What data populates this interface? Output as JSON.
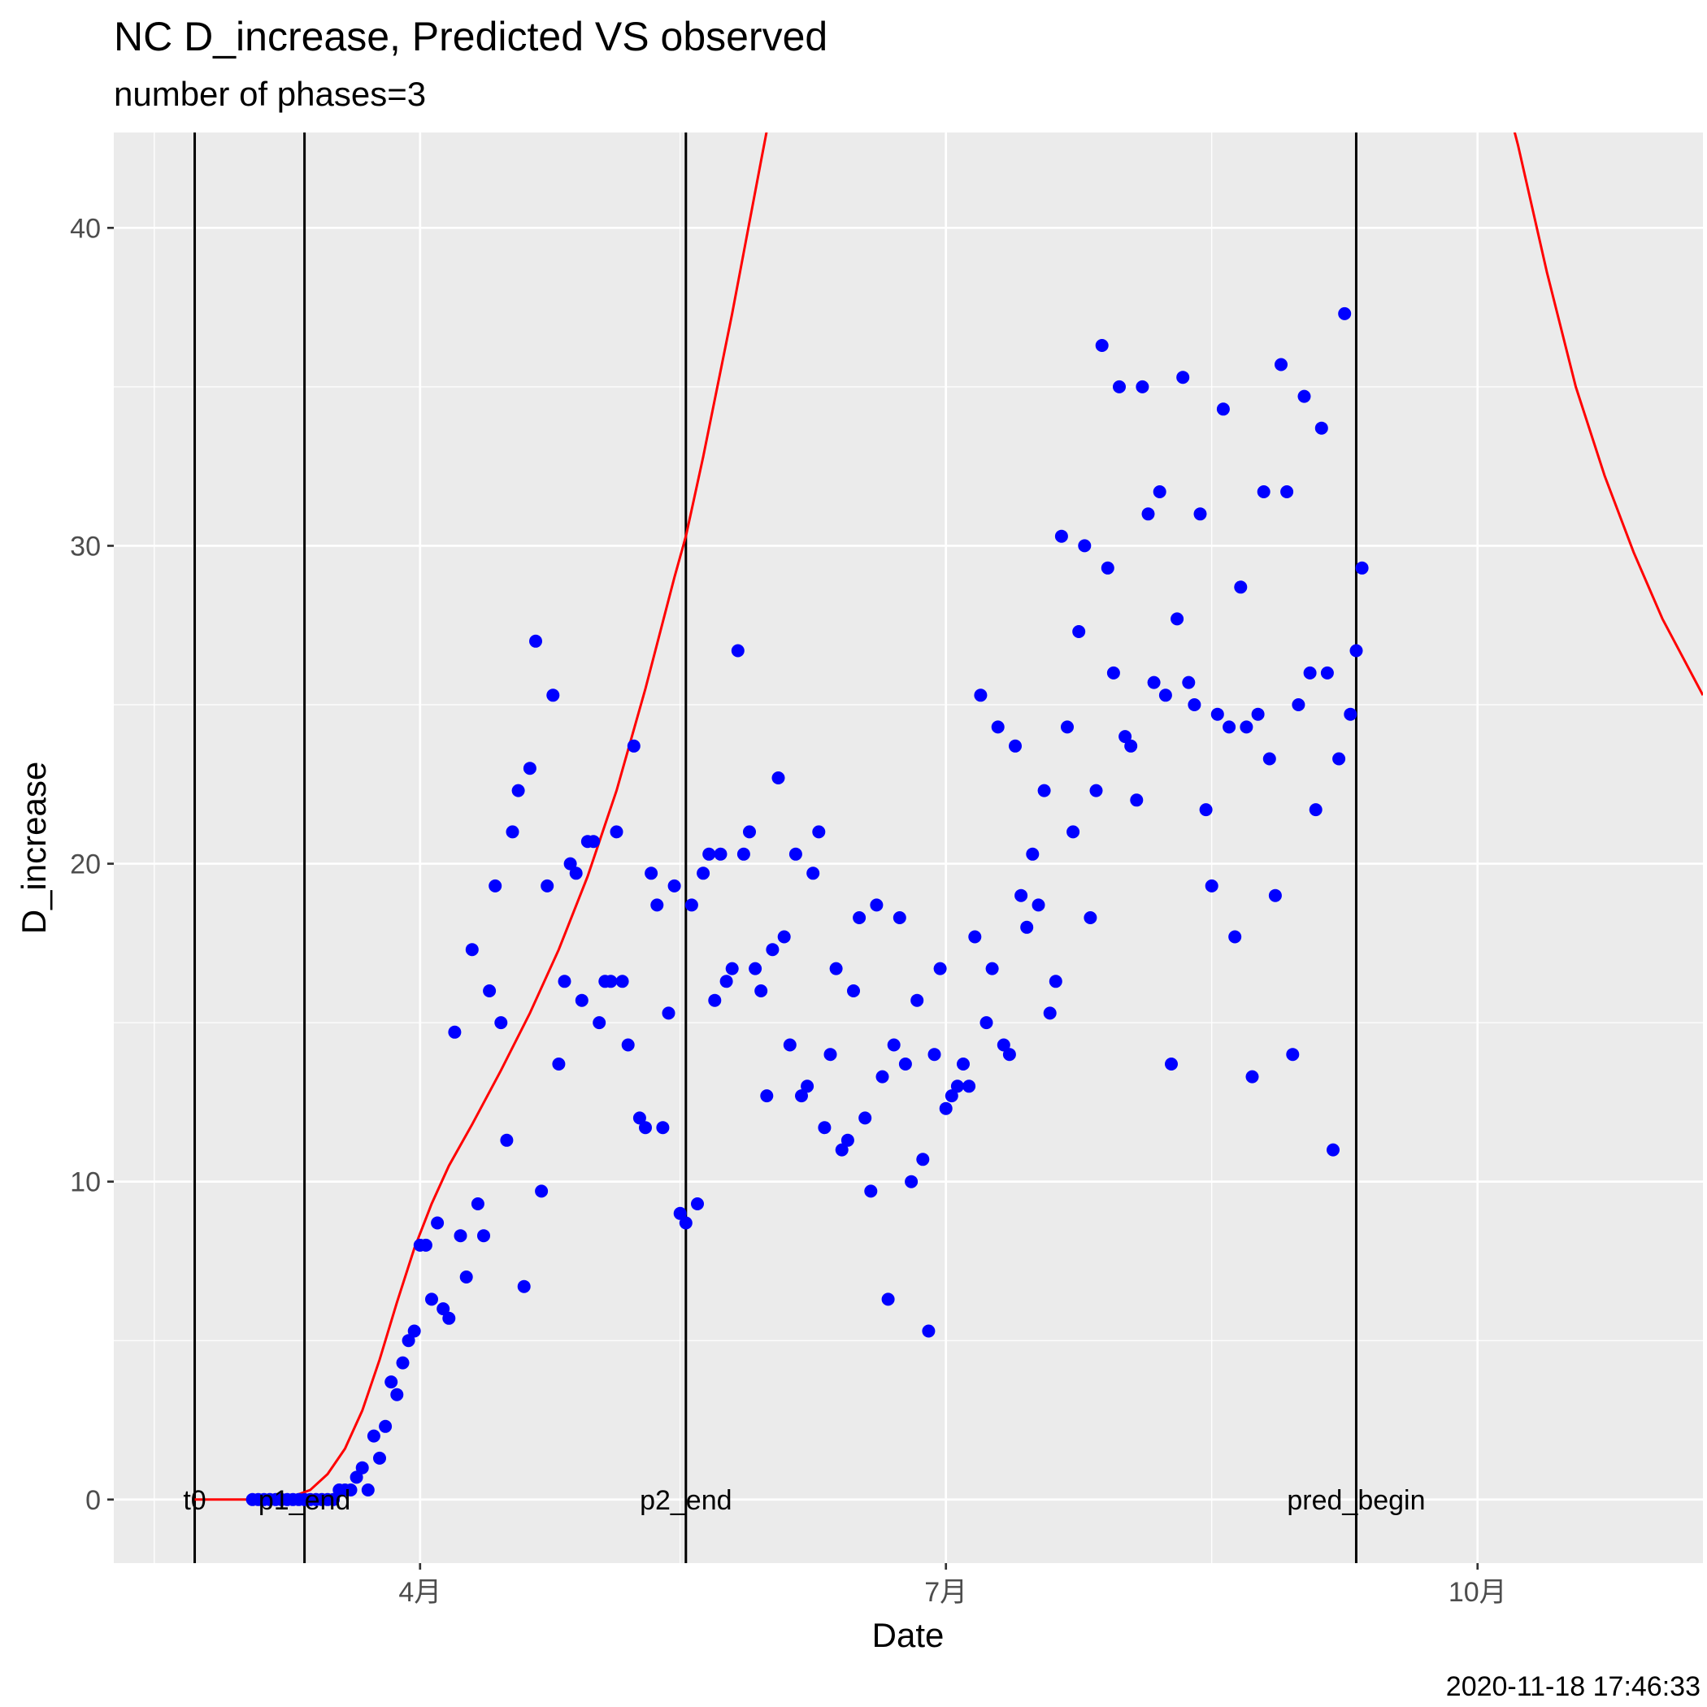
{
  "chart_data": {
    "type": "scatter",
    "title": "NC D_increase, Predicted VS observed",
    "subtitle": "number of phases=3",
    "xlabel": "Date",
    "ylabel": "D_increase",
    "caption": "2020-11-18 17:46:33",
    "xlim": [
      "2020-02-08",
      "2020-11-09"
    ],
    "ylim": [
      -2,
      43
    ],
    "y_ticks": [
      0,
      10,
      20,
      30,
      40
    ],
    "x_ticks": [
      {
        "date": "2020-04-01",
        "label": "4月"
      },
      {
        "date": "2020-07-01",
        "label": "7月"
      },
      {
        "date": "2020-10-01",
        "label": "10月"
      }
    ],
    "grid": true,
    "colors": {
      "panel": "#ebebeb",
      "grid": "#ffffff",
      "points": "#0000ff",
      "predicted": "#ff0000",
      "vlines": "#000000"
    },
    "vlines": [
      {
        "date": "2020-02-22",
        "label": "t0"
      },
      {
        "date": "2020-03-12",
        "label": "p1_end"
      },
      {
        "date": "2020-05-17",
        "label": "p2_end"
      },
      {
        "date": "2020-09-10",
        "label": "pred_begin"
      }
    ],
    "series": [
      {
        "type": "scatter",
        "color": "#0000ff",
        "points": [
          [
            "2020-03-03",
            0
          ],
          [
            "2020-03-04",
            0
          ],
          [
            "2020-03-05",
            0
          ],
          [
            "2020-03-06",
            0
          ],
          [
            "2020-03-07",
            0
          ],
          [
            "2020-03-08",
            0
          ],
          [
            "2020-03-09",
            0
          ],
          [
            "2020-03-10",
            0
          ],
          [
            "2020-03-11",
            0
          ],
          [
            "2020-03-12",
            0
          ],
          [
            "2020-03-13",
            0
          ],
          [
            "2020-03-14",
            0
          ],
          [
            "2020-03-15",
            0
          ],
          [
            "2020-03-16",
            0
          ],
          [
            "2020-03-17",
            0
          ],
          [
            "2020-03-18",
            0.3
          ],
          [
            "2020-03-19",
            0.3
          ],
          [
            "2020-03-20",
            0.3
          ],
          [
            "2020-03-21",
            0.7
          ],
          [
            "2020-03-22",
            1
          ],
          [
            "2020-03-23",
            0.3
          ],
          [
            "2020-03-24",
            2
          ],
          [
            "2020-03-25",
            1.3
          ],
          [
            "2020-03-26",
            2.3
          ],
          [
            "2020-03-27",
            3.7
          ],
          [
            "2020-03-28",
            3.3
          ],
          [
            "2020-03-29",
            4.3
          ],
          [
            "2020-03-30",
            5
          ],
          [
            "2020-03-31",
            5.3
          ],
          [
            "2020-04-01",
            8
          ],
          [
            "2020-04-02",
            8
          ],
          [
            "2020-04-03",
            6.3
          ],
          [
            "2020-04-04",
            8.7
          ],
          [
            "2020-04-05",
            6
          ],
          [
            "2020-04-06",
            5.7
          ],
          [
            "2020-04-07",
            14.7
          ],
          [
            "2020-04-08",
            8.3
          ],
          [
            "2020-04-09",
            7
          ],
          [
            "2020-04-10",
            17.3
          ],
          [
            "2020-04-11",
            9.3
          ],
          [
            "2020-04-12",
            8.3
          ],
          [
            "2020-04-13",
            16
          ],
          [
            "2020-04-14",
            19.3
          ],
          [
            "2020-04-15",
            15
          ],
          [
            "2020-04-16",
            11.3
          ],
          [
            "2020-04-17",
            21
          ],
          [
            "2020-04-18",
            22.3
          ],
          [
            "2020-04-19",
            6.7
          ],
          [
            "2020-04-20",
            23
          ],
          [
            "2020-04-21",
            27
          ],
          [
            "2020-04-22",
            9.7
          ],
          [
            "2020-04-23",
            19.3
          ],
          [
            "2020-04-24",
            25.3
          ],
          [
            "2020-04-25",
            13.7
          ],
          [
            "2020-04-26",
            16.3
          ],
          [
            "2020-04-27",
            20
          ],
          [
            "2020-04-28",
            19.7
          ],
          [
            "2020-04-29",
            15.7
          ],
          [
            "2020-04-30",
            20.7
          ],
          [
            "2020-05-01",
            20.7
          ],
          [
            "2020-05-02",
            15
          ],
          [
            "2020-05-03",
            16.3
          ],
          [
            "2020-05-04",
            16.3
          ],
          [
            "2020-05-05",
            21
          ],
          [
            "2020-05-06",
            16.3
          ],
          [
            "2020-05-07",
            14.3
          ],
          [
            "2020-05-08",
            23.7
          ],
          [
            "2020-05-09",
            12
          ],
          [
            "2020-05-10",
            11.7
          ],
          [
            "2020-05-11",
            19.7
          ],
          [
            "2020-05-12",
            18.7
          ],
          [
            "2020-05-13",
            11.7
          ],
          [
            "2020-05-14",
            15.3
          ],
          [
            "2020-05-15",
            19.3
          ],
          [
            "2020-05-16",
            9
          ],
          [
            "2020-05-17",
            8.7
          ],
          [
            "2020-05-18",
            18.7
          ],
          [
            "2020-05-19",
            9.3
          ],
          [
            "2020-05-20",
            19.7
          ],
          [
            "2020-05-21",
            20.3
          ],
          [
            "2020-05-22",
            15.7
          ],
          [
            "2020-05-23",
            20.3
          ],
          [
            "2020-05-24",
            16.3
          ],
          [
            "2020-05-25",
            16.7
          ],
          [
            "2020-05-26",
            26.7
          ],
          [
            "2020-05-27",
            20.3
          ],
          [
            "2020-05-28",
            21
          ],
          [
            "2020-05-29",
            16.7
          ],
          [
            "2020-05-30",
            16
          ],
          [
            "2020-05-31",
            12.7
          ],
          [
            "2020-06-01",
            17.3
          ],
          [
            "2020-06-02",
            22.7
          ],
          [
            "2020-06-03",
            17.7
          ],
          [
            "2020-06-04",
            14.3
          ],
          [
            "2020-06-05",
            20.3
          ],
          [
            "2020-06-06",
            12.7
          ],
          [
            "2020-06-07",
            13
          ],
          [
            "2020-06-08",
            19.7
          ],
          [
            "2020-06-09",
            21
          ],
          [
            "2020-06-10",
            11.7
          ],
          [
            "2020-06-11",
            14
          ],
          [
            "2020-06-12",
            16.7
          ],
          [
            "2020-06-13",
            11
          ],
          [
            "2020-06-14",
            11.3
          ],
          [
            "2020-06-15",
            16
          ],
          [
            "2020-06-16",
            18.3
          ],
          [
            "2020-06-17",
            12
          ],
          [
            "2020-06-18",
            9.7
          ],
          [
            "2020-06-19",
            18.7
          ],
          [
            "2020-06-20",
            13.3
          ],
          [
            "2020-06-21",
            6.3
          ],
          [
            "2020-06-22",
            14.3
          ],
          [
            "2020-06-23",
            18.3
          ],
          [
            "2020-06-24",
            13.7
          ],
          [
            "2020-06-25",
            10
          ],
          [
            "2020-06-26",
            15.7
          ],
          [
            "2020-06-27",
            10.7
          ],
          [
            "2020-06-28",
            5.3
          ],
          [
            "2020-06-29",
            14
          ],
          [
            "2020-06-30",
            16.7
          ],
          [
            "2020-07-01",
            12.3
          ],
          [
            "2020-07-02",
            12.7
          ],
          [
            "2020-07-03",
            13
          ],
          [
            "2020-07-04",
            13.7
          ],
          [
            "2020-07-05",
            13
          ],
          [
            "2020-07-06",
            17.7
          ],
          [
            "2020-07-07",
            25.3
          ],
          [
            "2020-07-08",
            15
          ],
          [
            "2020-07-09",
            16.7
          ],
          [
            "2020-07-10",
            24.3
          ],
          [
            "2020-07-11",
            14.3
          ],
          [
            "2020-07-12",
            14
          ],
          [
            "2020-07-13",
            23.7
          ],
          [
            "2020-07-14",
            19
          ],
          [
            "2020-07-15",
            18
          ],
          [
            "2020-07-16",
            20.3
          ],
          [
            "2020-07-17",
            18.7
          ],
          [
            "2020-07-18",
            22.3
          ],
          [
            "2020-07-19",
            15.3
          ],
          [
            "2020-07-20",
            16.3
          ],
          [
            "2020-07-21",
            30.3
          ],
          [
            "2020-07-22",
            24.3
          ],
          [
            "2020-07-23",
            21
          ],
          [
            "2020-07-24",
            27.3
          ],
          [
            "2020-07-25",
            30
          ],
          [
            "2020-07-26",
            18.3
          ],
          [
            "2020-07-27",
            22.3
          ],
          [
            "2020-07-28",
            36.3
          ],
          [
            "2020-07-29",
            29.3
          ],
          [
            "2020-07-30",
            26
          ],
          [
            "2020-07-31",
            35
          ],
          [
            "2020-08-01",
            24
          ],
          [
            "2020-08-02",
            23.7
          ],
          [
            "2020-08-03",
            22
          ],
          [
            "2020-08-04",
            35
          ],
          [
            "2020-08-05",
            31
          ],
          [
            "2020-08-06",
            25.7
          ],
          [
            "2020-08-07",
            31.7
          ],
          [
            "2020-08-08",
            25.3
          ],
          [
            "2020-08-09",
            13.7
          ],
          [
            "2020-08-10",
            27.7
          ],
          [
            "2020-08-11",
            35.3
          ],
          [
            "2020-08-12",
            25.7
          ],
          [
            "2020-08-13",
            25
          ],
          [
            "2020-08-14",
            31
          ],
          [
            "2020-08-15",
            21.7
          ],
          [
            "2020-08-16",
            19.3
          ],
          [
            "2020-08-17",
            24.7
          ],
          [
            "2020-08-18",
            34.3
          ],
          [
            "2020-08-19",
            24.3
          ],
          [
            "2020-08-20",
            17.7
          ],
          [
            "2020-08-21",
            28.7
          ],
          [
            "2020-08-22",
            24.3
          ],
          [
            "2020-08-23",
            13.3
          ],
          [
            "2020-08-24",
            24.7
          ],
          [
            "2020-08-25",
            31.7
          ],
          [
            "2020-08-26",
            23.3
          ],
          [
            "2020-08-27",
            19
          ],
          [
            "2020-08-28",
            35.7
          ],
          [
            "2020-08-29",
            31.7
          ],
          [
            "2020-08-30",
            14
          ],
          [
            "2020-08-31",
            25
          ],
          [
            "2020-09-01",
            34.7
          ],
          [
            "2020-09-02",
            26
          ],
          [
            "2020-09-03",
            21.7
          ],
          [
            "2020-09-04",
            33.7
          ],
          [
            "2020-09-05",
            26
          ],
          [
            "2020-09-06",
            11
          ],
          [
            "2020-09-07",
            23.3
          ],
          [
            "2020-09-08",
            37.3
          ],
          [
            "2020-09-09",
            24.7
          ],
          [
            "2020-09-10",
            26.7
          ],
          [
            "2020-09-11",
            29.3
          ]
        ]
      },
      {
        "type": "line",
        "color": "#ff0000",
        "points": [
          [
            "2020-02-22",
            0
          ],
          [
            "2020-03-05",
            0
          ],
          [
            "2020-03-10",
            0.1
          ],
          [
            "2020-03-13",
            0.3
          ],
          [
            "2020-03-16",
            0.8
          ],
          [
            "2020-03-19",
            1.6
          ],
          [
            "2020-03-22",
            2.8
          ],
          [
            "2020-03-25",
            4.4
          ],
          [
            "2020-03-28",
            6.2
          ],
          [
            "2020-03-31",
            7.9
          ],
          [
            "2020-04-03",
            9.3
          ],
          [
            "2020-04-06",
            10.5
          ],
          [
            "2020-04-10",
            11.8
          ],
          [
            "2020-04-15",
            13.5
          ],
          [
            "2020-04-20",
            15.3
          ],
          [
            "2020-04-25",
            17.3
          ],
          [
            "2020-04-30",
            19.6
          ],
          [
            "2020-05-05",
            22.3
          ],
          [
            "2020-05-10",
            25.5
          ],
          [
            "2020-05-15",
            29
          ],
          [
            "2020-05-17",
            30.3
          ],
          [
            "2020-05-20",
            32.8
          ],
          [
            "2020-05-25",
            37.3
          ],
          [
            "2020-05-30",
            42.1
          ],
          [
            "2020-06-01",
            44
          ],
          [
            "2020-10-06",
            44
          ],
          [
            "2020-10-08",
            42.6
          ],
          [
            "2020-10-13",
            38.6
          ],
          [
            "2020-10-18",
            35
          ],
          [
            "2020-10-23",
            32.2
          ],
          [
            "2020-10-28",
            29.8
          ],
          [
            "2020-11-02",
            27.7
          ],
          [
            "2020-11-09",
            25.3
          ]
        ]
      }
    ]
  }
}
